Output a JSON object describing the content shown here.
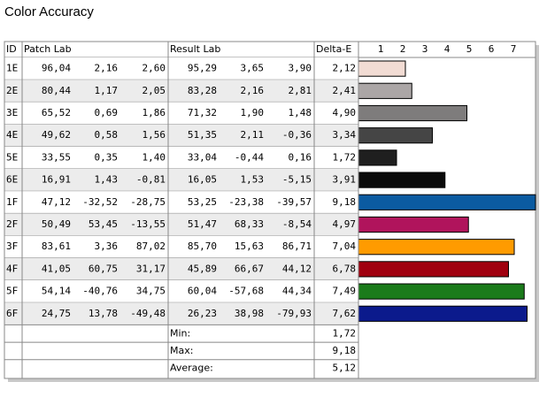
{
  "title": "Color Accuracy",
  "table": {
    "headers": [
      "ID",
      "Patch Lab",
      "Result Lab",
      "Delta-E"
    ],
    "rows": [
      {
        "id": "1E",
        "patch": [
          "96,04",
          "2,16",
          "2,60"
        ],
        "result": [
          "95,29",
          "3,65",
          "3,90"
        ]
      },
      {
        "id": "2E",
        "patch": [
          "80,44",
          "1,17",
          "2,05"
        ],
        "result": [
          "83,28",
          "2,16",
          "2,81"
        ]
      },
      {
        "id": "3E",
        "patch": [
          "65,52",
          "0,69",
          "1,86"
        ],
        "result": [
          "71,32",
          "1,90",
          "1,48"
        ]
      },
      {
        "id": "4E",
        "patch": [
          "49,62",
          "0,58",
          "1,56"
        ],
        "result": [
          "51,35",
          "2,11",
          "-0,36"
        ]
      },
      {
        "id": "5E",
        "patch": [
          "33,55",
          "0,35",
          "1,40"
        ],
        "result": [
          "33,04",
          "-0,44",
          "0,16"
        ]
      },
      {
        "id": "6E",
        "patch": [
          "16,91",
          "1,43",
          "-0,81"
        ],
        "result": [
          "16,05",
          "1,53",
          "-5,15"
        ]
      },
      {
        "id": "1F",
        "patch": [
          "47,12",
          "-32,52",
          "-28,75"
        ],
        "result": [
          "53,25",
          "-23,38",
          "-39,57"
        ]
      },
      {
        "id": "2F",
        "patch": [
          "50,49",
          "53,45",
          "-13,55"
        ],
        "result": [
          "51,47",
          "68,33",
          "-8,54"
        ]
      },
      {
        "id": "3F",
        "patch": [
          "83,61",
          "3,36",
          "87,02"
        ],
        "result": [
          "85,70",
          "15,63",
          "86,71"
        ]
      },
      {
        "id": "4F",
        "patch": [
          "41,05",
          "60,75",
          "31,17"
        ],
        "result": [
          "45,89",
          "66,67",
          "44,12"
        ]
      },
      {
        "id": "5F",
        "patch": [
          "54,14",
          "-40,76",
          "34,75"
        ],
        "result": [
          "60,04",
          "-57,68",
          "44,34"
        ]
      },
      {
        "id": "6F",
        "patch": [
          "24,75",
          "13,78",
          "-49,48"
        ],
        "result": [
          "26,23",
          "38,98",
          "-79,93"
        ]
      }
    ],
    "delta_e": {
      "values": [
        2.12,
        2.41,
        4.9,
        3.34,
        1.72,
        3.91,
        9.18,
        4.97,
        7.04,
        6.78,
        7.49,
        7.62
      ],
      "value_labels": [
        "2,12",
        "2,41",
        "4,90",
        "3,34",
        "1,72",
        "3,91",
        "9,18",
        "4,97",
        "7,04",
        "6,78",
        "7,49",
        "7,62"
      ],
      "colors": [
        "#f2dcd4",
        "#aba6a6",
        "#7e7c7c",
        "#454545",
        "#1f1f1f",
        "#0b0b0b",
        "#0b5ba1",
        "#b0145c",
        "#ff9b00",
        "#a0000f",
        "#1b7b1b",
        "#0b1a8c"
      ],
      "xlim": [
        0,
        8
      ],
      "xticks": [
        1,
        2,
        3,
        4,
        5,
        6,
        7
      ]
    },
    "summary": [
      {
        "label": "Min:",
        "value": "1,72"
      },
      {
        "label": "Max:",
        "value": "9,18"
      },
      {
        "label": "Average:",
        "value": "5,12"
      }
    ]
  }
}
